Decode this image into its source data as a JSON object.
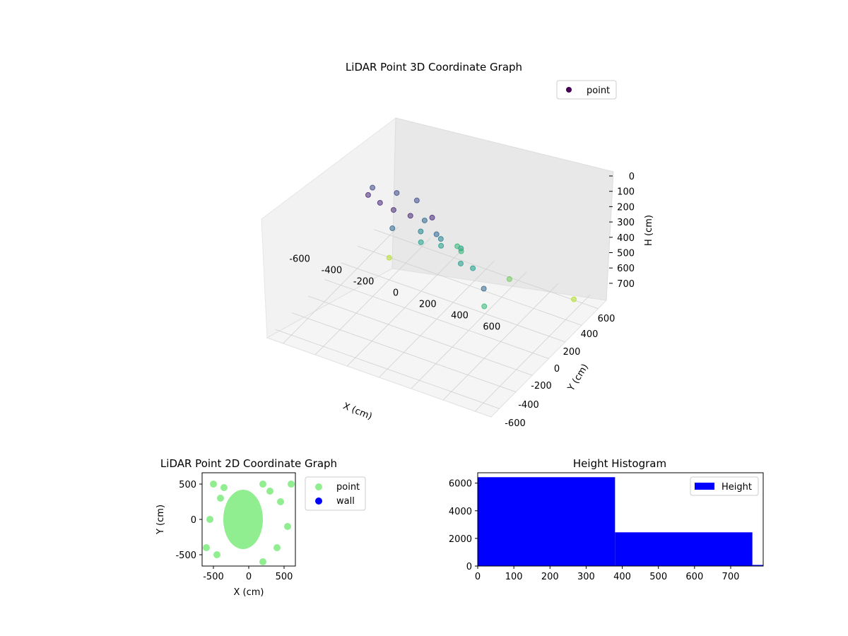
{
  "chart_data": [
    {
      "type": "scatter3d",
      "title": "LiDAR Point 3D Coordinate Graph",
      "xlabel": "X (cm)",
      "ylabel": "Y (cm)",
      "zlabel": "H (cm)",
      "xlim": [
        -700,
        700
      ],
      "ylim": [
        -700,
        700
      ],
      "zlim": [
        0,
        760
      ],
      "z_inverted": true,
      "x_ticks": [
        -600,
        -400,
        -200,
        0,
        200,
        400,
        600
      ],
      "y_ticks": [
        -600,
        -400,
        -200,
        0,
        200,
        400,
        600
      ],
      "z_ticks": [
        0,
        100,
        200,
        300,
        400,
        500,
        600,
        700
      ],
      "colormap": "viridis",
      "legend": {
        "entries": [
          "point"
        ],
        "placement": "upper-right"
      },
      "series": [
        {
          "name": "point",
          "color": "#440154",
          "points_sample": [
            [
              -300,
              250,
              120
            ],
            [
              -200,
              300,
              110
            ],
            [
              -100,
              330,
              105
            ],
            [
              0,
              320,
              110
            ],
            [
              100,
              250,
              120
            ],
            [
              -350,
              100,
              160
            ],
            [
              -250,
              0,
              200
            ],
            [
              -150,
              -50,
              230
            ],
            [
              -50,
              50,
              260
            ],
            [
              50,
              100,
              280
            ],
            [
              -200,
              150,
              300
            ],
            [
              -100,
              0,
              350
            ],
            [
              0,
              -50,
              380
            ],
            [
              100,
              -100,
              420
            ],
            [
              150,
              0,
              440
            ],
            [
              -50,
              -150,
              470
            ],
            [
              50,
              -200,
              490
            ],
            [
              -150,
              -100,
              460
            ],
            [
              200,
              -50,
              470
            ],
            [
              0,
              -250,
              500
            ],
            [
              400,
              200,
              500
            ],
            [
              300,
              -300,
              600
            ],
            [
              -400,
              -200,
              650
            ],
            [
              500,
              400,
              300
            ],
            [
              600,
              -500,
              700
            ]
          ]
        }
      ]
    },
    {
      "type": "scatter",
      "title": "LiDAR Point 2D Coordinate Graph",
      "xlabel": "X (cm)",
      "ylabel": "Y (cm)",
      "xlim": [
        -660,
        660
      ],
      "ylim": [
        -660,
        660
      ],
      "x_ticks": [
        -500,
        0,
        500
      ],
      "y_ticks": [
        -500,
        0,
        500
      ],
      "legend": {
        "entries": [
          "point",
          "wall"
        ],
        "placement": "outside-right"
      },
      "series": [
        {
          "name": "point",
          "color": "#90ee90",
          "points_sample": [
            [
              -100,
              100
            ],
            [
              -50,
              0
            ],
            [
              0,
              50
            ],
            [
              50,
              -50
            ],
            [
              -150,
              -100
            ],
            [
              -200,
              50
            ],
            [
              -100,
              200
            ],
            [
              0,
              300
            ],
            [
              100,
              200
            ],
            [
              150,
              0
            ],
            [
              100,
              -200
            ],
            [
              -50,
              -300
            ],
            [
              -250,
              -200
            ],
            [
              -300,
              100
            ],
            [
              -400,
              300
            ],
            [
              -500,
              500
            ],
            [
              -600,
              -400
            ],
            [
              -550,
              0
            ],
            [
              -450,
              -500
            ],
            [
              200,
              500
            ],
            [
              300,
              400
            ],
            [
              450,
              250
            ],
            [
              550,
              -100
            ],
            [
              600,
              500
            ],
            [
              400,
              -400
            ],
            [
              200,
              -600
            ],
            [
              -350,
              450
            ]
          ]
        },
        {
          "name": "wall",
          "color": "#0000ff",
          "points_sample": []
        }
      ]
    },
    {
      "type": "bar",
      "title": "Height Histogram",
      "xlim": [
        0,
        790
      ],
      "ylim": [
        0,
        6750
      ],
      "x_ticks": [
        0,
        100,
        200,
        300,
        400,
        500,
        600,
        700
      ],
      "y_ticks": [
        0,
        2000,
        4000,
        6000
      ],
      "legend": {
        "entries": [
          "Height"
        ],
        "placement": "upper-right"
      },
      "bins": [
        {
          "start": 0,
          "end": 380,
          "count": 6430
        },
        {
          "start": 380,
          "end": 760,
          "count": 2440
        },
        {
          "start": 760,
          "end": 790,
          "count": 80
        }
      ],
      "series": [
        {
          "name": "Height",
          "color": "#0000ff"
        }
      ]
    }
  ]
}
